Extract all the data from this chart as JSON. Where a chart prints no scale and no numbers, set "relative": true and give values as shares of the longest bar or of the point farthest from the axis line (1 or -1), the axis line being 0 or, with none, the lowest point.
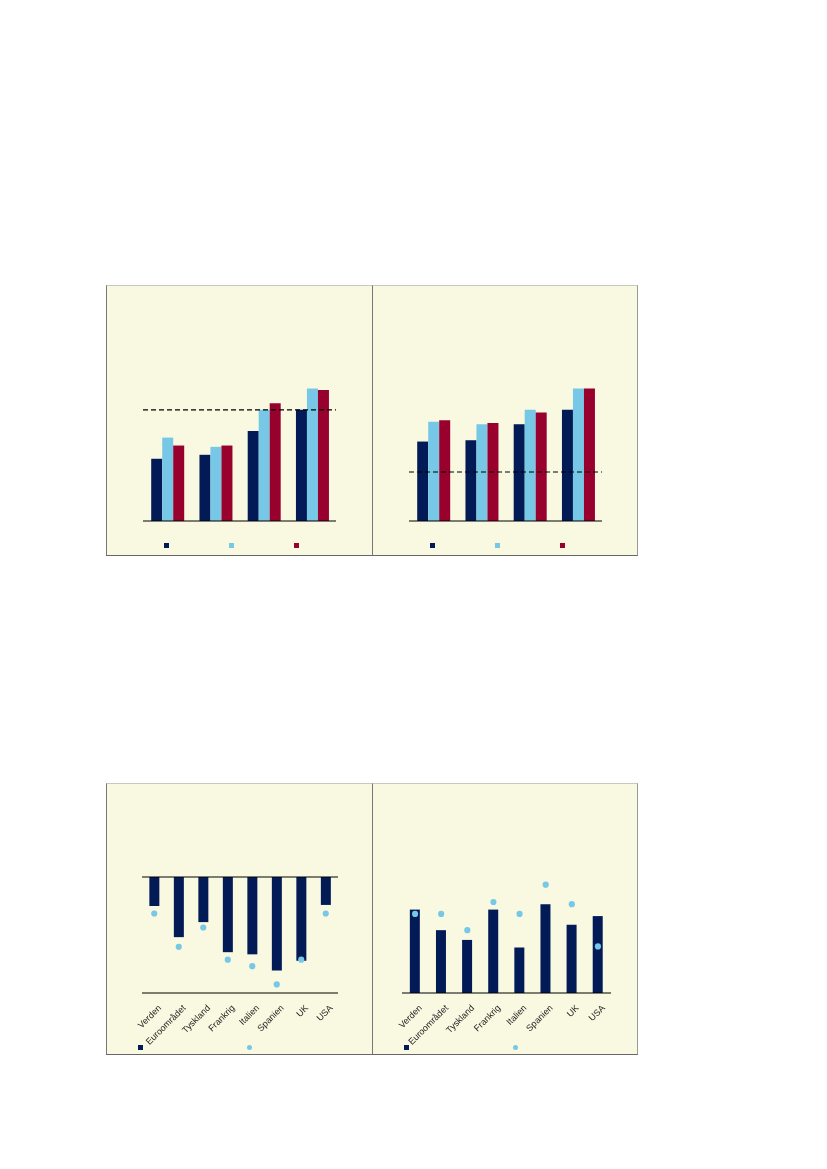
{
  "chart_data": [
    {
      "type": "bar",
      "categories": [
        null,
        null,
        null,
        null
      ],
      "relative": true,
      "series": [
        {
          "color": "#021b57",
          "values": [
            0.47,
            0.5,
            0.68,
            0.84
          ]
        },
        {
          "color": "#76c8e6",
          "values": [
            0.63,
            0.56,
            0.84,
            1
          ]
        },
        {
          "color": "#98002e",
          "values": [
            0.57,
            0.57,
            0.89,
            0.99
          ]
        }
      ],
      "ref_lines": [
        {
          "axis": "y",
          "value": 0.84,
          "color": "#000000",
          "line_style": "dashed"
        }
      ]
    },
    {
      "type": "bar",
      "categories": [
        null,
        null,
        null,
        null
      ],
      "relative": true,
      "series": [
        {
          "color": "#021b57",
          "values": [
            0.6,
            0.61,
            0.73,
            0.84
          ]
        },
        {
          "color": "#76c8e6",
          "values": [
            0.75,
            0.73,
            0.84,
            1
          ]
        },
        {
          "color": "#98002e",
          "values": [
            0.76,
            0.74,
            0.82,
            1
          ]
        }
      ],
      "ref_lines": [
        {
          "axis": "y",
          "value": 0.37,
          "color": "#000000",
          "line_style": "dashed"
        }
      ]
    },
    {
      "type": "bar",
      "categories": [
        "Verden",
        "Euroområdet",
        "Tyskland",
        "Frankrig",
        "Italien",
        "Spanien",
        "UK",
        "USA"
      ],
      "relative": true,
      "series": [
        {
          "color": "#021b57",
          "values": [
            -0.27,
            -0.56,
            -0.42,
            -0.7,
            -0.72,
            -0.87,
            -0.78,
            -0.26
          ]
        },
        {
          "type": "scatter",
          "marker": "circle",
          "color": "#76c8e6",
          "values": [
            -0.34,
            -0.65,
            -0.47,
            -0.77,
            -0.83,
            -1,
            -0.77,
            -0.34
          ]
        }
      ]
    },
    {
      "type": "bar",
      "categories": [
        "Verden",
        "Euroområdet",
        "Tyskland",
        "Frankrig",
        "Italien",
        "Spanien",
        "UK",
        "USA"
      ],
      "relative": true,
      "series": [
        {
          "color": "#021b57",
          "values": [
            0.77,
            0.58,
            0.49,
            0.77,
            0.42,
            0.82,
            0.63,
            0.71
          ]
        },
        {
          "type": "scatter",
          "marker": "circle",
          "color": "#76c8e6",
          "values": [
            0.73,
            0.73,
            0.58,
            0.84,
            0.73,
            1,
            0.82,
            0.43
          ]
        }
      ]
    }
  ]
}
